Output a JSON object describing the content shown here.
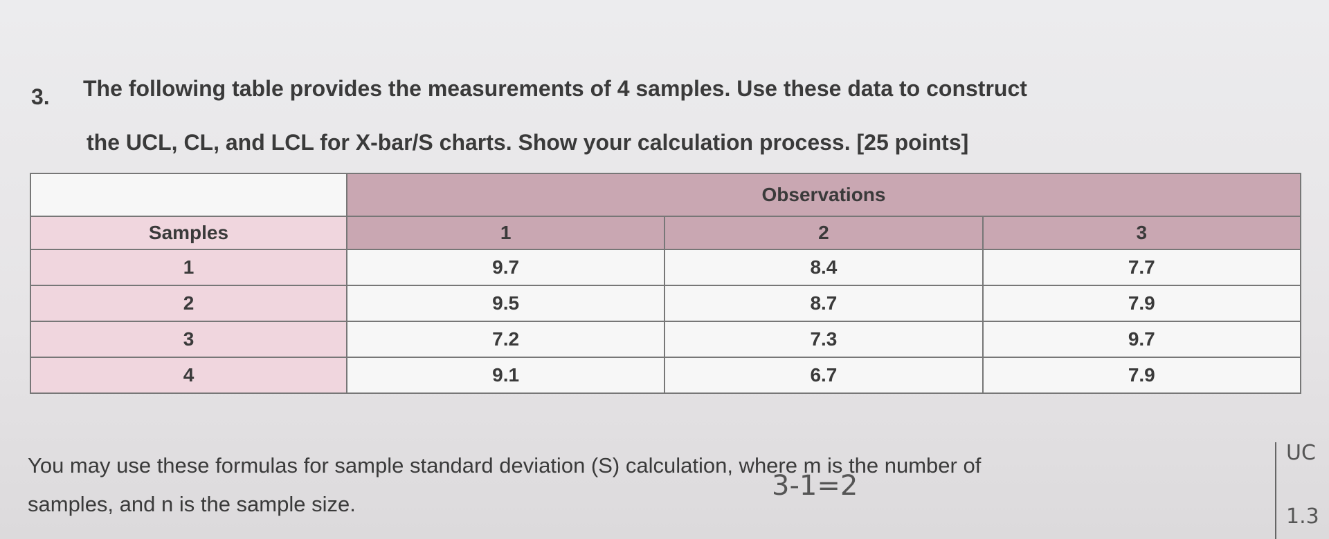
{
  "question": {
    "number": "3.",
    "lines": [
      "The following table provides the measurements of 4 samples. Use these data to construct",
      "the UCL, CL, and LCL for X-bar/S charts. Show your calculation process. [25 points]"
    ]
  },
  "table": {
    "group_header": "Observations",
    "header": [
      "Samples",
      "1",
      "2",
      "3"
    ],
    "rows": [
      [
        "1",
        "9.7",
        "8.4",
        "7.7"
      ],
      [
        "2",
        "9.5",
        "8.7",
        "7.9"
      ],
      [
        "3",
        "7.2",
        "7.3",
        "9.7"
      ],
      [
        "4",
        "9.1",
        "6.7",
        "7.9"
      ]
    ]
  },
  "note": {
    "lines": [
      "You may use these formulas for sample standard deviation (S) calculation, where m is the number of",
      "samples, and n is the sample size."
    ]
  },
  "handwriting": [
    "3-1=2",
    "UC",
    "1.3"
  ]
}
